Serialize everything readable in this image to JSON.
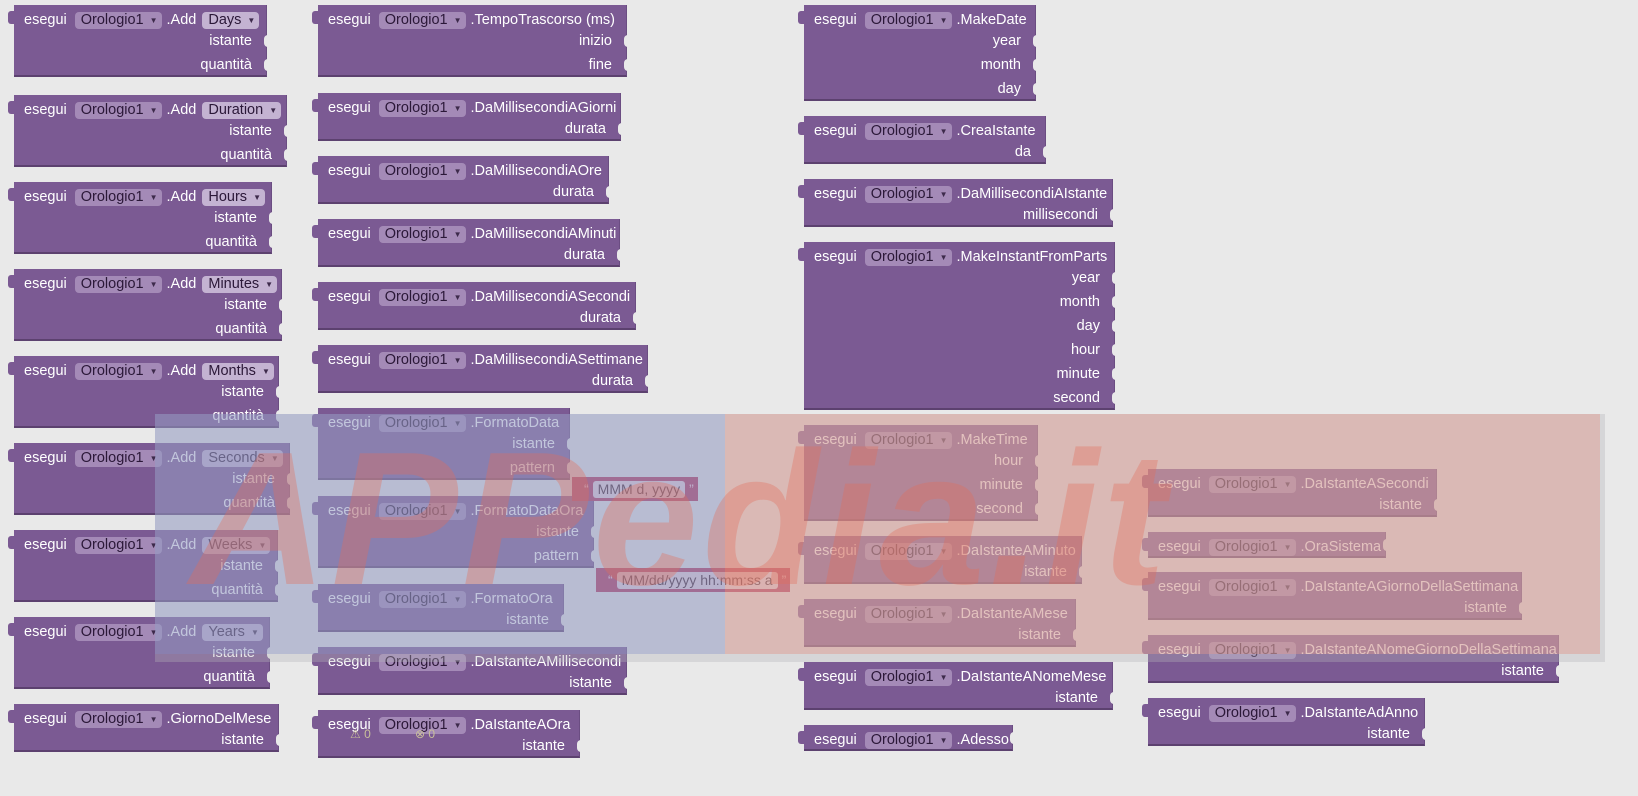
{
  "keyword": "esegui",
  "component": "Orologio1",
  "strings": {
    "formato_data_pattern": "MMM d, yyyy",
    "formato_data_ora_pattern": "MM/dd/yyyy hh:mm:ss a"
  },
  "watermark": "APPedia.it",
  "warnings": {
    "warn_count": "0",
    "error_count": "0"
  },
  "blocks": {
    "add_days": {
      "method": "Add",
      "unit": "Days",
      "args": [
        "istante",
        "quantità"
      ]
    },
    "add_duration": {
      "method": "Add",
      "unit": "Duration",
      "args": [
        "istante",
        "quantità"
      ]
    },
    "add_hours": {
      "method": "Add",
      "unit": "Hours",
      "args": [
        "istante",
        "quantità"
      ]
    },
    "add_minutes": {
      "method": "Add",
      "unit": "Minutes",
      "args": [
        "istante",
        "quantità"
      ]
    },
    "add_months": {
      "method": "Add",
      "unit": "Months",
      "args": [
        "istante",
        "quantità"
      ]
    },
    "add_seconds": {
      "method": "Add",
      "unit": "Seconds",
      "args": [
        "istante",
        "quantità"
      ]
    },
    "add_weeks": {
      "method": "Add",
      "unit": "Weeks",
      "args": [
        "istante",
        "quantità"
      ]
    },
    "add_years": {
      "method": "Add",
      "unit": "Years",
      "args": [
        "istante",
        "quantità"
      ]
    },
    "giorno_del_mese": {
      "method": "GiornoDelMese",
      "args": [
        "istante"
      ]
    },
    "tempo_trascorso": {
      "method": "TempoTrascorso (ms)",
      "args": [
        "inizio",
        "fine"
      ]
    },
    "da_ms_giorni": {
      "method": "DaMillisecondiAGiorni",
      "args": [
        "durata"
      ]
    },
    "da_ms_ore": {
      "method": "DaMillisecondiAOre",
      "args": [
        "durata"
      ]
    },
    "da_ms_minuti": {
      "method": "DaMillisecondiAMinuti",
      "args": [
        "durata"
      ]
    },
    "da_ms_secondi": {
      "method": "DaMillisecondiASecondi",
      "args": [
        "durata"
      ]
    },
    "da_ms_settimane": {
      "method": "DaMillisecondiASettimane",
      "args": [
        "durata"
      ]
    },
    "formato_data": {
      "method": "FormatoData",
      "args": [
        "istante",
        "pattern"
      ]
    },
    "formato_data_ora": {
      "method": "FormatoDataOra",
      "args": [
        "istante",
        "pattern"
      ]
    },
    "formato_ora": {
      "method": "FormatoOra",
      "args": [
        "istante"
      ]
    },
    "da_ist_ms": {
      "method": "DaIstanteAMillisecondi",
      "args": [
        "istante"
      ]
    },
    "da_ist_ora": {
      "method": "DaIstanteAOra",
      "args": [
        "istante"
      ]
    },
    "make_date": {
      "method": "MakeDate",
      "args": [
        "year",
        "month",
        "day"
      ]
    },
    "crea_istante": {
      "method": "CreaIstante",
      "args": [
        "da"
      ]
    },
    "da_ms_istante": {
      "method": "DaMillisecondiAIstante",
      "args": [
        "millisecondi"
      ]
    },
    "make_instant": {
      "method": "MakeInstantFromParts",
      "args": [
        "year",
        "month",
        "day",
        "hour",
        "minute",
        "second"
      ]
    },
    "make_time": {
      "method": "MakeTime",
      "args": [
        "hour",
        "minute",
        "second"
      ]
    },
    "da_ist_minuto": {
      "method": "DaIstanteAMinuto",
      "args": [
        "istante"
      ]
    },
    "da_ist_mese": {
      "method": "DaIstanteAMese",
      "args": [
        "istante"
      ]
    },
    "da_ist_nome_mese": {
      "method": "DaIstanteANomeMese",
      "args": [
        "istante"
      ]
    },
    "adesso": {
      "method": "Adesso",
      "args": []
    },
    "da_ist_secondi": {
      "method": "DaIstanteASecondi",
      "args": [
        "istante"
      ]
    },
    "ora_sistema": {
      "method": "OraSistema",
      "args": []
    },
    "da_ist_giorno_sett": {
      "method": "DaIstanteAGiornoDellaSettimana",
      "args": [
        "istante"
      ]
    },
    "da_ist_nome_giorno": {
      "method": "DaIstanteANomeGiornoDellaSettimana",
      "args": [
        "istante"
      ]
    },
    "da_ist_anno": {
      "method": "DaIstanteAdAnno",
      "args": [
        "istante"
      ]
    }
  }
}
